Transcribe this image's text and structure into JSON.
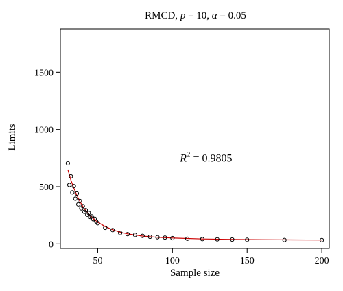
{
  "chart_data": {
    "type": "scatter",
    "title_parts": [
      {
        "text": "RMCD, ",
        "italic": false
      },
      {
        "text": "p",
        "italic": true
      },
      {
        "text": " = 10, ",
        "italic": false
      },
      {
        "text": "α",
        "italic": true
      },
      {
        "text": " = 0.05",
        "italic": false
      }
    ],
    "xlabel": "Sample size",
    "ylabel": "Limits",
    "xlim": [
      25,
      205
    ],
    "ylim": [
      -40,
      1880
    ],
    "xticks": [
      50,
      100,
      150,
      200
    ],
    "yticks": [
      0,
      500,
      1000,
      1500
    ],
    "grid": false,
    "annotation": {
      "symbol": "R",
      "superscript": "2",
      "value": " = 0.9805",
      "x": 105,
      "y": 720
    },
    "series": [
      {
        "kind": "points",
        "color": "#000000",
        "x": [
          30,
          31,
          32,
          33,
          34,
          35,
          36,
          37,
          38,
          39,
          40,
          41,
          42,
          43,
          44,
          45,
          46,
          47,
          48,
          49,
          50,
          55,
          60,
          65,
          70,
          75,
          80,
          85,
          90,
          95,
          100,
          110,
          120,
          130,
          140,
          150,
          175,
          200
        ],
        "y": [
          705,
          515,
          590,
          450,
          505,
          395,
          440,
          345,
          375,
          310,
          330,
          280,
          295,
          255,
          270,
          235,
          240,
          215,
          220,
          195,
          180,
          140,
          120,
          95,
          85,
          78,
          70,
          62,
          58,
          55,
          50,
          45,
          42,
          40,
          38,
          36,
          34,
          33
        ]
      },
      {
        "kind": "fit-curve",
        "color": "#cc0000",
        "x": [
          30,
          32,
          34,
          36,
          38,
          40,
          42,
          45,
          48,
          50,
          55,
          60,
          65,
          70,
          80,
          90,
          100,
          120,
          140,
          160,
          180,
          200
        ],
        "y": [
          650,
          560,
          487,
          425,
          372,
          328,
          291,
          245,
          210,
          190,
          151,
          123,
          102,
          87,
          68,
          57,
          51,
          43,
          39,
          37,
          35,
          34
        ]
      }
    ]
  }
}
